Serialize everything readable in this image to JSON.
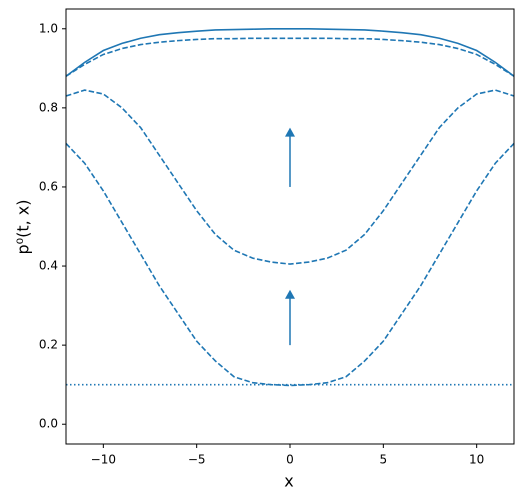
{
  "chart_data": {
    "type": "line",
    "xlabel": "x",
    "ylabel": "p⁰(t, x)",
    "x": [
      -12,
      -11,
      -10,
      -9,
      -8,
      -7,
      -6,
      -5,
      -4,
      -3,
      -2,
      -1,
      0,
      1,
      2,
      3,
      4,
      5,
      6,
      7,
      8,
      9,
      10,
      11,
      12
    ],
    "series": [
      {
        "color": "#1f77b4",
        "style": "solid",
        "values": [
          0.88,
          0.915,
          0.945,
          0.963,
          0.976,
          0.985,
          0.99,
          0.994,
          0.997,
          0.998,
          0.999,
          1.0,
          1.0,
          1.0,
          0.999,
          0.998,
          0.997,
          0.994,
          0.99,
          0.985,
          0.976,
          0.963,
          0.945,
          0.915,
          0.88
        ]
      },
      {
        "color": "#1f77b4",
        "style": "dashed",
        "values": [
          0.88,
          0.91,
          0.935,
          0.95,
          0.96,
          0.966,
          0.97,
          0.973,
          0.975,
          0.975,
          0.976,
          0.976,
          0.976,
          0.976,
          0.976,
          0.975,
          0.975,
          0.973,
          0.97,
          0.966,
          0.96,
          0.95,
          0.935,
          0.91,
          0.88
        ]
      },
      {
        "color": "#1f77b4",
        "style": "dashed",
        "values": [
          0.83,
          0.845,
          0.835,
          0.8,
          0.75,
          0.68,
          0.61,
          0.54,
          0.48,
          0.44,
          0.42,
          0.41,
          0.405,
          0.41,
          0.42,
          0.44,
          0.48,
          0.54,
          0.61,
          0.68,
          0.75,
          0.8,
          0.835,
          0.845,
          0.83
        ]
      },
      {
        "color": "#1f77b4",
        "style": "dashed",
        "values": [
          0.71,
          0.66,
          0.59,
          0.51,
          0.43,
          0.35,
          0.28,
          0.21,
          0.16,
          0.12,
          0.105,
          0.1,
          0.098,
          0.1,
          0.105,
          0.12,
          0.16,
          0.21,
          0.28,
          0.35,
          0.43,
          0.51,
          0.59,
          0.66,
          0.71
        ]
      },
      {
        "color": "#1f77b4",
        "style": "dotted",
        "values": [
          0.1,
          0.1,
          0.1,
          0.1,
          0.1,
          0.1,
          0.1,
          0.1,
          0.1,
          0.1,
          0.1,
          0.1,
          0.1,
          0.1,
          0.1,
          0.1,
          0.1,
          0.1,
          0.1,
          0.1,
          0.1,
          0.1,
          0.1,
          0.1,
          0.1
        ]
      }
    ],
    "arrows": [
      {
        "x": 0,
        "y_start": 0.2,
        "y_end": 0.34,
        "color": "#1f77b4"
      },
      {
        "x": 0,
        "y_start": 0.6,
        "y_end": 0.75,
        "color": "#1f77b4"
      }
    ],
    "xlim": [
      -12,
      12
    ],
    "ylim": [
      -0.05,
      1.05
    ],
    "xticks": [
      {
        "value": -10,
        "label": "−10"
      },
      {
        "value": -5,
        "label": "−5"
      },
      {
        "value": 0,
        "label": "0"
      },
      {
        "value": 5,
        "label": "5"
      },
      {
        "value": 10,
        "label": "10"
      }
    ],
    "yticks": [
      {
        "value": 0,
        "label": "0.0"
      },
      0.2,
      0.4,
      0.6,
      0.8,
      {
        "value": 1,
        "label": "1.0"
      }
    ]
  }
}
